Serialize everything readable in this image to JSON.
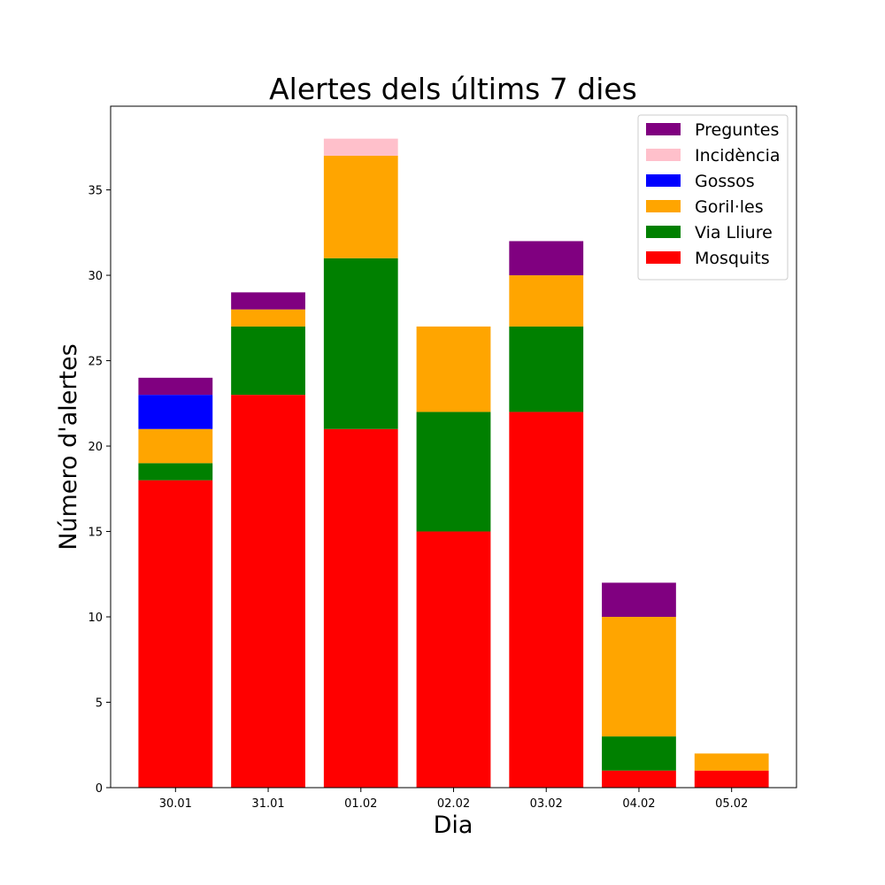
{
  "chart_data": {
    "type": "bar",
    "stacked": true,
    "title": "Alertes dels últims 7 dies",
    "xlabel": "Dia",
    "ylabel": "Número d'alertes",
    "categories": [
      "30.01",
      "31.01",
      "01.02",
      "02.02",
      "03.02",
      "04.02",
      "05.02"
    ],
    "ylim": [
      0,
      39.9
    ],
    "yticks": [
      0,
      5,
      10,
      15,
      20,
      25,
      30,
      35
    ],
    "grid": false,
    "legend_position": "top-right",
    "series": [
      {
        "name": "Mosquits",
        "color": "#ff0000",
        "values": [
          18,
          23,
          21,
          15,
          22,
          1,
          1
        ]
      },
      {
        "name": "Via Lliure",
        "color": "#008000",
        "values": [
          1,
          4,
          10,
          7,
          5,
          2,
          0
        ]
      },
      {
        "name": "Goril·les",
        "color": "#ffa500",
        "values": [
          2,
          1,
          6,
          5,
          3,
          7,
          1
        ]
      },
      {
        "name": "Gossos",
        "color": "#0000ff",
        "values": [
          2,
          0,
          0,
          0,
          0,
          0,
          0
        ]
      },
      {
        "name": "Incidència",
        "color": "#ffc0cb",
        "values": [
          0,
          0,
          1,
          0,
          0,
          0,
          0
        ]
      },
      {
        "name": "Preguntes",
        "color": "#800080",
        "values": [
          1,
          1,
          0,
          0,
          2,
          2,
          0
        ]
      }
    ]
  }
}
